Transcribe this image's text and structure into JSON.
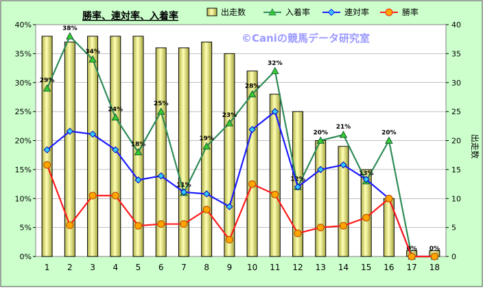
{
  "chart_data": {
    "type": "bar+line",
    "title": "勝率、連対率、入着率",
    "watermark": "©Caniの競馬データ研究室",
    "xlabel": "",
    "ylabel_left": "",
    "ylabel_right": "出走数",
    "categories": [
      "1",
      "2",
      "3",
      "4",
      "5",
      "6",
      "7",
      "8",
      "9",
      "10",
      "11",
      "12",
      "13",
      "14",
      "15",
      "16",
      "17",
      "18"
    ],
    "left_axis": {
      "ylim": [
        0,
        40
      ],
      "ticks": [
        "0%",
        "5%",
        "10%",
        "15%",
        "20%",
        "25%",
        "30%",
        "35%",
        "40%"
      ],
      "unit": "%"
    },
    "right_axis": {
      "ylim": [
        0,
        40
      ],
      "ticks": [
        "0",
        "5",
        "10",
        "15",
        "20",
        "25",
        "30",
        "35",
        "40"
      ]
    },
    "bars": {
      "name": "出走数",
      "axis": "right",
      "values": [
        38,
        37,
        38,
        38,
        38,
        36,
        36,
        37,
        35,
        32,
        28,
        25,
        20,
        19,
        15,
        10,
        1,
        1
      ]
    },
    "lines": [
      {
        "name": "入着率",
        "axis": "left",
        "marker": "triangle",
        "color": "#2e8b57",
        "marker_fill": "#33cc33",
        "values": [
          29,
          38,
          34,
          24,
          18,
          25,
          11,
          19,
          23,
          28,
          32,
          12,
          20,
          21,
          13,
          20,
          0,
          0
        ],
        "labels": [
          "29%",
          "38%",
          "34%",
          "24%",
          "18%",
          "25%",
          "11%",
          "19%",
          "23%",
          "28%",
          "32%",
          "12%",
          "20%",
          "21%",
          "13%",
          "20%",
          "0%",
          "0%"
        ]
      },
      {
        "name": "連対率",
        "axis": "left",
        "marker": "diamond",
        "color": "#1a1aff",
        "marker_fill": "#33ccff",
        "values": [
          18.4,
          21.6,
          21.1,
          18.4,
          13.2,
          13.9,
          11.1,
          10.8,
          8.6,
          21.9,
          25.0,
          12.0,
          15.0,
          15.8,
          13.3,
          10.0,
          0,
          0
        ]
      },
      {
        "name": "勝率",
        "axis": "left",
        "marker": "circle",
        "color": "#ff1a1a",
        "marker_fill": "#ffa500",
        "values": [
          15.8,
          5.4,
          10.5,
          10.5,
          5.3,
          5.6,
          5.6,
          8.1,
          2.9,
          12.5,
          10.7,
          4.0,
          5.0,
          5.3,
          6.7,
          10.0,
          0,
          0
        ]
      }
    ],
    "legend_position": "top",
    "grid": true,
    "colors": {
      "plot_bg": "#ffffff",
      "frame_bg": "#ccffcc",
      "bar_fill": "#e6e680",
      "bar_stroke": "#000000",
      "grid": "#808080",
      "watermark": "#9999ff"
    }
  }
}
